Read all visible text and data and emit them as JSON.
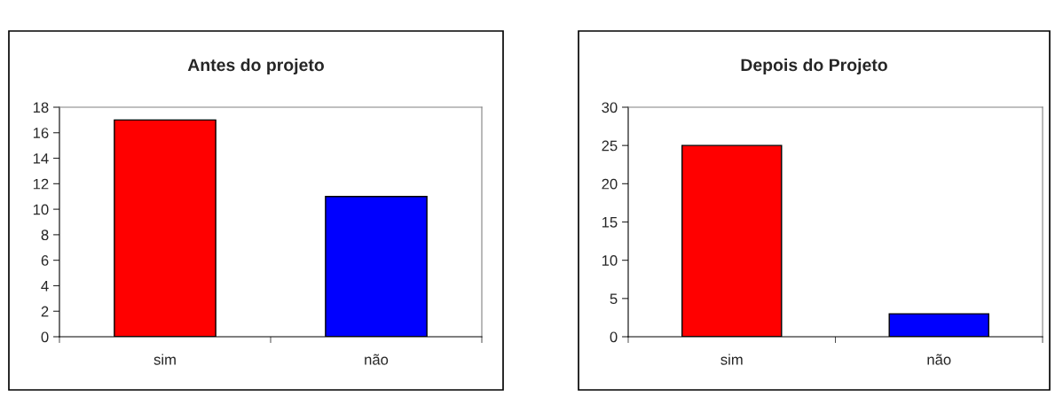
{
  "chart_data": [
    {
      "type": "bar",
      "title": "Antes do projeto",
      "categories": [
        "sim",
        "não"
      ],
      "values": [
        17,
        11
      ],
      "colors": [
        "#ff0000",
        "#0000ff"
      ],
      "ylim": [
        0,
        18
      ],
      "yticks": [
        0,
        2,
        4,
        6,
        8,
        10,
        12,
        14,
        16,
        18
      ],
      "grid": false,
      "legend": false
    },
    {
      "type": "bar",
      "title": "Depois do Projeto",
      "categories": [
        "sim",
        "não"
      ],
      "values": [
        25,
        3
      ],
      "colors": [
        "#ff0000",
        "#0000ff"
      ],
      "ylim": [
        0,
        30
      ],
      "yticks": [
        0,
        5,
        10,
        15,
        20,
        25,
        30
      ],
      "grid": false,
      "legend": false
    }
  ]
}
